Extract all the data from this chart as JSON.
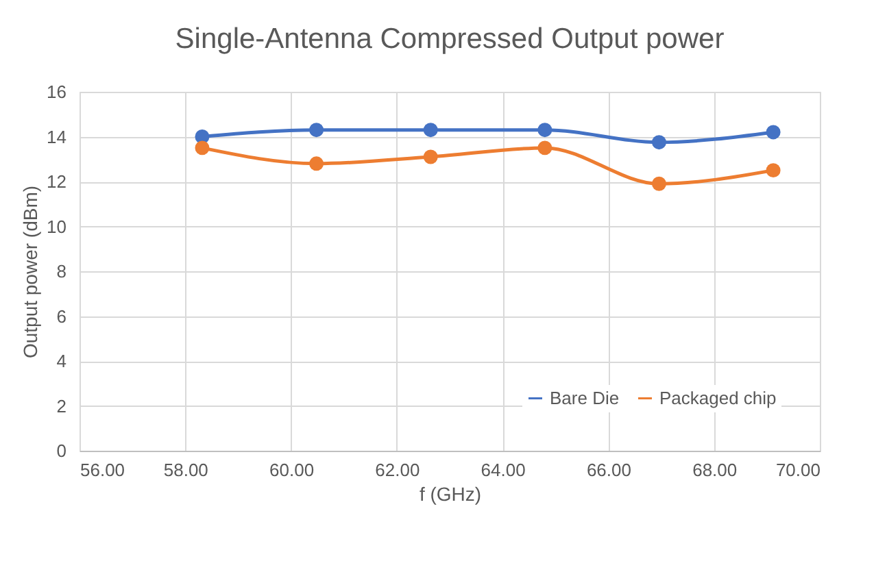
{
  "chart_data": {
    "type": "line",
    "title": "Single-Antenna Compressed Output power",
    "xlabel": "f (GHz)",
    "ylabel": "Output power (dBm)",
    "x": [
      58.32,
      60.48,
      62.64,
      64.8,
      66.96,
      69.12
    ],
    "series": [
      {
        "name": "Bare Die",
        "color": "#4472c4",
        "values": [
          14.0,
          14.3,
          14.3,
          14.3,
          13.75,
          14.2
        ]
      },
      {
        "name": "Packaged chip",
        "color": "#ed7d31",
        "values": [
          13.5,
          12.8,
          13.1,
          13.5,
          11.9,
          12.5
        ]
      }
    ],
    "xlim": [
      56,
      70
    ],
    "xticks": [
      {
        "value": 56,
        "label": "56.00"
      },
      {
        "value": 58,
        "label": "58.00"
      },
      {
        "value": 60,
        "label": "60.00"
      },
      {
        "value": 62,
        "label": "62.00"
      },
      {
        "value": 64,
        "label": "64.00"
      },
      {
        "value": 66,
        "label": "66.00"
      },
      {
        "value": 68,
        "label": "68.00"
      },
      {
        "value": 70,
        "label": "70.00"
      }
    ],
    "ylim": [
      0,
      16
    ],
    "yticks": [
      0,
      2,
      4,
      6,
      8,
      10,
      12,
      14,
      16
    ],
    "grid": true,
    "legend": "bottom right",
    "marker": "circle",
    "line_style": "solid"
  }
}
